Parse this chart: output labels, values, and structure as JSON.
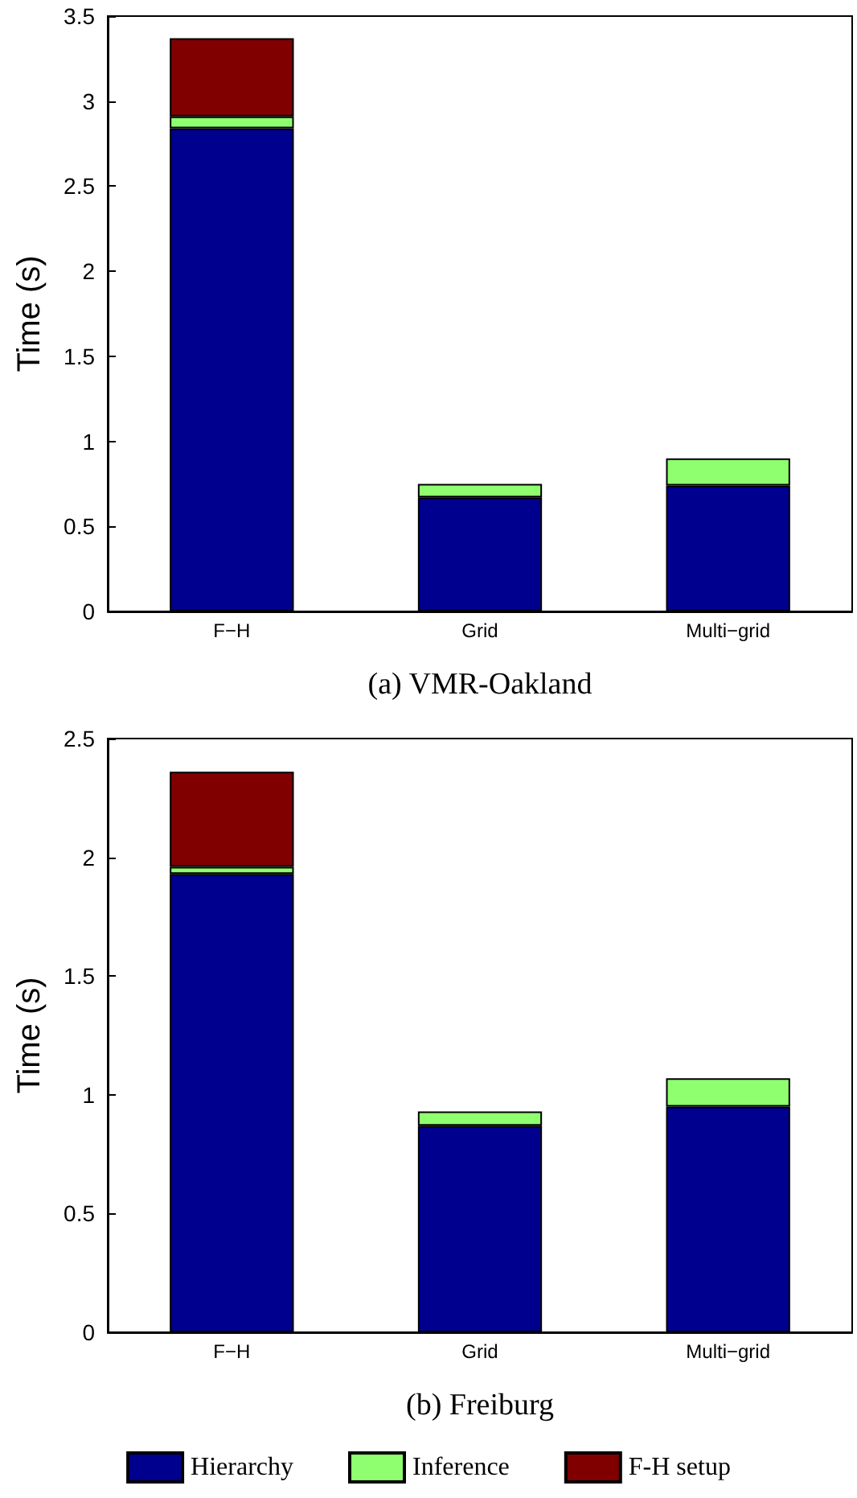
{
  "chart_data": [
    {
      "type": "bar",
      "xlabel": "(a) VMR-Oakland",
      "ylabel": "Time (s)",
      "categories": [
        "F−H",
        "Grid",
        "Multi−grid"
      ],
      "stacked": true,
      "series": [
        {
          "color": "#00008f",
          "values": [
            2.84,
            0.67,
            0.74
          ]
        },
        {
          "color": "#8fff6f",
          "values": [
            0.07,
            0.08,
            0.16
          ]
        },
        {
          "color": "#800000",
          "values": [
            0.46,
            null,
            null
          ]
        }
      ],
      "ylim": [
        0,
        3.5
      ],
      "yticks": [
        0,
        0.5,
        1,
        1.5,
        2,
        2.5,
        3,
        3.5
      ],
      "grid": false,
      "legend": false
    },
    {
      "type": "bar",
      "xlabel": "(b) Freiburg",
      "ylabel": "Time (s)",
      "categories": [
        "F−H",
        "Grid",
        "Multi−grid"
      ],
      "stacked": true,
      "series": [
        {
          "name": "Hierarchy",
          "color": "#00008f",
          "values": [
            1.93,
            0.87,
            0.95
          ]
        },
        {
          "name": "Inference",
          "color": "#8fff6f",
          "values": [
            0.03,
            0.06,
            0.12
          ]
        },
        {
          "name": "F-H setup",
          "color": "#800000",
          "values": [
            0.4,
            null,
            null
          ]
        }
      ],
      "ylim": [
        0,
        2.5
      ],
      "yticks": [
        0,
        0.5,
        1,
        1.5,
        2,
        2.5
      ],
      "grid": false,
      "legend": "bottom"
    }
  ]
}
